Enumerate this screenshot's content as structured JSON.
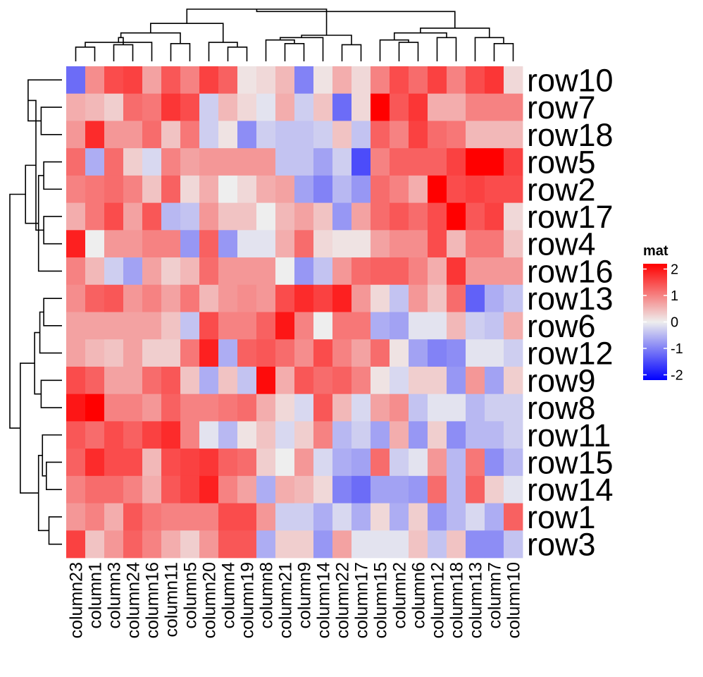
{
  "chart_data": {
    "type": "heatmap",
    "columns": [
      "column23",
      "column1",
      "column3",
      "column24",
      "column16",
      "column11",
      "column5",
      "column20",
      "column4",
      "column19",
      "column8",
      "column21",
      "column9",
      "column14",
      "column22",
      "column17",
      "column15",
      "column2",
      "column6",
      "column12",
      "column18",
      "column13",
      "column7",
      "column10"
    ],
    "rows": [
      "row10",
      "row7",
      "row18",
      "row5",
      "row2",
      "row17",
      "row4",
      "row16",
      "row13",
      "row6",
      "row12",
      "row9",
      "row8",
      "row11",
      "row15",
      "row14",
      "row1",
      "row3"
    ],
    "values": [
      [
        -1.2,
        0.9,
        1.5,
        1.6,
        0.7,
        1.4,
        1.0,
        1.6,
        1.3,
        0.1,
        0.2,
        0.5,
        -1.0,
        0.1,
        0.6,
        0.2,
        1.0,
        1.5,
        1.2,
        1.6,
        1.0,
        1.5,
        1.7,
        0.2
      ],
      [
        0.6,
        0.5,
        0.3,
        1.2,
        1.1,
        1.7,
        1.5,
        -0.3,
        0.5,
        0.2,
        -0.1,
        0.6,
        -0.3,
        0.4,
        -1.2,
        0.2,
        2.2,
        1.4,
        1.7,
        0.6,
        0.6,
        1.0,
        1.0,
        1.0
      ],
      [
        0.8,
        1.8,
        0.8,
        0.8,
        1.2,
        0.4,
        1.1,
        -0.3,
        0.1,
        -0.9,
        -0.3,
        -0.4,
        -0.4,
        -0.3,
        0.4,
        -0.4,
        1.3,
        1.0,
        1.6,
        1.2,
        1.1,
        0.5,
        0.5,
        0.5
      ],
      [
        1.2,
        -0.6,
        1.2,
        0.3,
        -0.2,
        1.0,
        0.7,
        0.8,
        0.8,
        0.8,
        0.8,
        -0.4,
        -0.4,
        -0.7,
        -0.3,
        -1.5,
        1.0,
        1.3,
        1.3,
        1.3,
        1.6,
        2.3,
        2.3,
        1.6
      ],
      [
        1.0,
        1.1,
        1.2,
        1.0,
        0.4,
        1.3,
        0.2,
        0.6,
        0.0,
        0.2,
        0.6,
        0.7,
        -0.7,
        -1.0,
        -0.5,
        -0.8,
        1.2,
        1.0,
        0.6,
        2.2,
        1.5,
        1.6,
        1.5,
        1.5
      ],
      [
        0.6,
        1.1,
        1.5,
        0.7,
        1.4,
        -0.5,
        -0.4,
        0.8,
        0.4,
        0.4,
        0.0,
        0.5,
        0.7,
        0.4,
        -0.8,
        0.7,
        1.2,
        1.4,
        1.2,
        1.5,
        2.4,
        1.4,
        1.6,
        0.2
      ],
      [
        1.9,
        0.0,
        0.8,
        0.8,
        1.0,
        1.0,
        -0.8,
        1.3,
        -0.8,
        -0.1,
        -0.1,
        0.6,
        1.2,
        0.2,
        0.1,
        0.1,
        0.7,
        0.9,
        0.9,
        1.5,
        0.5,
        1.1,
        1.1,
        0.4
      ],
      [
        1.0,
        0.5,
        -0.3,
        -0.7,
        0.7,
        0.3,
        0.5,
        1.2,
        0.8,
        0.8,
        0.8,
        0.0,
        -0.8,
        -0.4,
        0.8,
        1.2,
        1.3,
        1.3,
        1.0,
        0.6,
        1.7,
        0.8,
        0.8,
        0.8
      ],
      [
        0.9,
        1.3,
        1.4,
        0.8,
        1.0,
        0.7,
        1.1,
        0.5,
        0.8,
        0.9,
        0.8,
        1.5,
        1.8,
        1.6,
        1.9,
        0.8,
        0.2,
        -0.4,
        0.8,
        0.4,
        1.2,
        -1.3,
        -0.6,
        -0.4
      ],
      [
        0.7,
        0.7,
        0.7,
        0.7,
        0.7,
        0.4,
        -0.4,
        1.5,
        1.0,
        1.0,
        1.3,
        2.0,
        1.0,
        0.0,
        1.1,
        1.1,
        -0.6,
        -0.7,
        -0.1,
        -0.1,
        0.5,
        -0.3,
        -0.4,
        0.6
      ],
      [
        0.7,
        0.5,
        0.4,
        0.7,
        0.3,
        0.3,
        1.1,
        1.9,
        -0.6,
        1.3,
        1.4,
        1.2,
        0.9,
        1.5,
        1.0,
        0.7,
        1.2,
        0.1,
        -0.7,
        -1.0,
        -0.9,
        -0.1,
        -0.1,
        -0.3
      ],
      [
        1.5,
        1.3,
        0.7,
        0.7,
        1.2,
        1.4,
        0.4,
        -0.6,
        0.4,
        -0.4,
        2.1,
        0.6,
        1.4,
        1.2,
        1.3,
        1.0,
        0.1,
        -0.2,
        0.3,
        0.3,
        -0.8,
        0.8,
        -0.7,
        0.3
      ],
      [
        2.0,
        2.2,
        1.0,
        1.0,
        0.8,
        1.3,
        1.0,
        1.0,
        1.1,
        1.2,
        0.6,
        0.2,
        -0.2,
        1.4,
        0.5,
        -0.2,
        0.7,
        0.9,
        -0.4,
        -0.1,
        -0.1,
        -0.5,
        -0.3,
        -0.3
      ],
      [
        1.4,
        1.2,
        1.5,
        1.3,
        1.6,
        1.8,
        1.0,
        -0.1,
        -0.5,
        0.1,
        0.4,
        -0.2,
        0.3,
        1.0,
        -0.5,
        -0.3,
        -0.7,
        0.6,
        -0.8,
        0.3,
        -0.9,
        -0.5,
        -0.5,
        -0.3
      ],
      [
        1.3,
        1.8,
        1.5,
        1.5,
        0.5,
        1.5,
        1.6,
        1.7,
        1.3,
        1.2,
        0.3,
        0.0,
        0.8,
        -0.2,
        -0.6,
        -0.7,
        1.2,
        -0.3,
        -0.1,
        0.8,
        -0.5,
        1.1,
        -0.9,
        -0.5
      ],
      [
        1.0,
        1.2,
        1.2,
        1.0,
        0.6,
        1.4,
        1.6,
        1.9,
        1.0,
        0.7,
        -0.6,
        0.6,
        0.5,
        0.2,
        -1.0,
        -1.2,
        -0.7,
        -0.7,
        -0.8,
        1.2,
        -0.5,
        1.3,
        0.3,
        -0.1
      ],
      [
        0.8,
        1.0,
        0.6,
        1.4,
        1.1,
        1.0,
        1.0,
        1.0,
        1.5,
        1.5,
        0.8,
        -0.3,
        -0.3,
        -0.6,
        -0.2,
        -0.6,
        0.2,
        -0.6,
        0.3,
        -0.8,
        -0.5,
        -0.2,
        -0.6,
        1.3
      ],
      [
        1.6,
        0.4,
        0.8,
        1.3,
        1.0,
        0.6,
        0.3,
        0.8,
        1.4,
        1.4,
        -0.6,
        0.3,
        0.3,
        -0.8,
        0.7,
        -0.1,
        -0.1,
        -0.1,
        0.4,
        -0.4,
        0.4,
        -0.9,
        -0.9,
        -0.4
      ]
    ],
    "legend": {
      "title": "mat",
      "ticks": [
        2,
        1,
        0,
        -1,
        -2
      ],
      "tick_labels": [
        "2",
        "1",
        "0",
        "-1",
        "-2"
      ],
      "range": [
        -2.2,
        2.2
      ],
      "placement": "right"
    },
    "colors": {
      "low": "#0000ff",
      "mid": "#eeeeee",
      "high": "#ff0000"
    },
    "column_dendrogram": [
      [
        0,
        1,
        0.6
      ],
      [
        2,
        3,
        0.7
      ],
      [
        24,
        4,
        0.8
      ],
      [
        25,
        26,
        1.0
      ],
      [
        5,
        6,
        0.75
      ],
      [
        27,
        28,
        1.2
      ],
      [
        8,
        9,
        0.6
      ],
      [
        7,
        30,
        0.8
      ],
      [
        31,
        29,
        1.6
      ],
      [
        11,
        12,
        0.75
      ],
      [
        10,
        33,
        0.9
      ],
      [
        34,
        13,
        1.0
      ],
      [
        15,
        14,
        0.7
      ],
      [
        35,
        36,
        1.1
      ],
      [
        32,
        37,
        2.2
      ],
      [
        17,
        18,
        0.8
      ],
      [
        16,
        39,
        0.9
      ],
      [
        19,
        20,
        1.0
      ],
      [
        40,
        41,
        1.2
      ],
      [
        22,
        23,
        0.75
      ],
      [
        21,
        43,
        1.0
      ],
      [
        42,
        44,
        1.4
      ],
      [
        38,
        45,
        2.1
      ]
    ],
    "row_dendrogram": [
      [
        1,
        2,
        0.8
      ],
      [
        0,
        18,
        1.3
      ],
      [
        3,
        4,
        0.7
      ],
      [
        5,
        6,
        0.7
      ],
      [
        20,
        7,
        0.9
      ],
      [
        19,
        21,
        1.0
      ],
      [
        22,
        23,
        1.4
      ],
      [
        8,
        9,
        0.7
      ],
      [
        25,
        10,
        0.85
      ],
      [
        11,
        12,
        0.8
      ],
      [
        26,
        27,
        1.05
      ],
      [
        14,
        15,
        0.6
      ],
      [
        13,
        29,
        0.75
      ],
      [
        16,
        17,
        0.5
      ],
      [
        30,
        31,
        0.9
      ],
      [
        28,
        32,
        1.6
      ],
      [
        24,
        33,
        2.0
      ]
    ]
  }
}
